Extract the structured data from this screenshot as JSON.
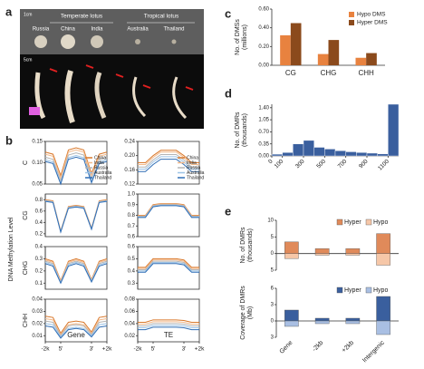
{
  "photo": {
    "label": "a",
    "groups": [
      "Temperate lotus",
      "Tropical lotus"
    ],
    "varieties": [
      "Russia",
      "China",
      "India",
      "Australia",
      "Thailand"
    ],
    "scales": [
      "1cm",
      "5cm"
    ]
  },
  "chart_data": [
    {
      "type": "line_grid",
      "label": "b",
      "ylabel": "DNA Methylation Level",
      "series": [
        {
          "name": "China",
          "color": "#d9782b"
        },
        {
          "name": "India",
          "color": "#f2b98a"
        },
        {
          "name": "Russia",
          "color": "#b4b4b4"
        },
        {
          "name": "Australia",
          "color": "#9cc3e6"
        },
        {
          "name": "Thailand",
          "color": "#2f6db5"
        }
      ],
      "columns": [
        "Gene",
        "TE"
      ],
      "x": [
        0,
        1,
        2,
        3,
        4,
        5,
        6,
        7,
        8
      ],
      "xlim": [
        0,
        8
      ],
      "xticks": [
        {
          "value": 0,
          "label": "-2k"
        },
        {
          "value": 2,
          "label": "5'"
        },
        {
          "value": 6,
          "label": "3'"
        },
        {
          "value": 8,
          "label": "+2k"
        }
      ],
      "rows": [
        {
          "name": "C",
          "panels": [
            {
              "ylim": [
                0.05,
                0.15
              ],
              "yticks": [
                0.05,
                {
                  "value": 0.1,
                  "label": "0.10"
                },
                0.15
              ],
              "values": [
                [
                  0.125,
                  0.12,
                  0.07,
                  0.13,
                  0.135,
                  0.13,
                  0.075,
                  0.12,
                  0.125
                ],
                [
                  0.12,
                  0.115,
                  0.065,
                  0.125,
                  0.13,
                  0.125,
                  0.07,
                  0.115,
                  0.12
                ],
                [
                  0.113,
                  0.108,
                  0.058,
                  0.118,
                  0.123,
                  0.118,
                  0.063,
                  0.108,
                  0.113
                ],
                [
                  0.107,
                  0.102,
                  0.052,
                  0.112,
                  0.117,
                  0.112,
                  0.057,
                  0.102,
                  0.107
                ],
                [
                  0.103,
                  0.098,
                  0.05,
                  0.108,
                  0.113,
                  0.108,
                  0.053,
                  0.098,
                  0.103
                ]
              ]
            },
            {
              "ylim": [
                0.12,
                0.24
              ],
              "yticks": [
                0.12,
                0.16,
                {
                  "value": 0.2,
                  "label": "0.20"
                },
                0.24
              ],
              "values": [
                [
                  0.18,
                  0.18,
                  0.2,
                  0.215,
                  0.215,
                  0.215,
                  0.2,
                  0.18,
                  0.18
                ],
                [
                  0.175,
                  0.175,
                  0.195,
                  0.21,
                  0.21,
                  0.21,
                  0.195,
                  0.175,
                  0.175
                ],
                [
                  0.168,
                  0.168,
                  0.188,
                  0.203,
                  0.203,
                  0.203,
                  0.188,
                  0.168,
                  0.168
                ],
                [
                  0.162,
                  0.162,
                  0.182,
                  0.197,
                  0.197,
                  0.197,
                  0.182,
                  0.162,
                  0.162
                ],
                [
                  0.155,
                  0.155,
                  0.175,
                  0.19,
                  0.19,
                  0.19,
                  0.175,
                  0.155,
                  0.155
                ]
              ]
            }
          ]
        },
        {
          "name": "CG",
          "panels": [
            {
              "ylim": [
                0.15,
                0.9
              ],
              "yticks": [
                0.2,
                0.4,
                0.6,
                0.8
              ],
              "values": [
                [
                  0.8,
                  0.78,
                  0.25,
                  0.68,
                  0.7,
                  0.68,
                  0.3,
                  0.78,
                  0.8
                ],
                [
                  0.79,
                  0.77,
                  0.24,
                  0.67,
                  0.69,
                  0.67,
                  0.29,
                  0.77,
                  0.79
                ],
                [
                  0.785,
                  0.765,
                  0.24,
                  0.665,
                  0.685,
                  0.665,
                  0.29,
                  0.765,
                  0.785
                ],
                [
                  0.78,
                  0.76,
                  0.235,
                  0.66,
                  0.68,
                  0.66,
                  0.285,
                  0.76,
                  0.78
                ],
                [
                  0.77,
                  0.75,
                  0.23,
                  0.65,
                  0.67,
                  0.65,
                  0.28,
                  0.75,
                  0.77
                ]
              ]
            },
            {
              "ylim": [
                0.6,
                1.0
              ],
              "yticks": [
                0.6,
                0.7,
                0.8,
                0.9,
                {
                  "value": 1,
                  "label": "1.0"
                }
              ],
              "values": [
                [
                  0.8,
                  0.8,
                  0.9,
                  0.91,
                  0.91,
                  0.91,
                  0.9,
                  0.8,
                  0.8
                ],
                [
                  0.795,
                  0.795,
                  0.895,
                  0.905,
                  0.905,
                  0.905,
                  0.895,
                  0.795,
                  0.795
                ],
                [
                  0.79,
                  0.79,
                  0.89,
                  0.9,
                  0.9,
                  0.9,
                  0.89,
                  0.79,
                  0.79
                ],
                [
                  0.785,
                  0.785,
                  0.885,
                  0.895,
                  0.895,
                  0.895,
                  0.885,
                  0.785,
                  0.785
                ],
                [
                  0.78,
                  0.78,
                  0.88,
                  0.89,
                  0.89,
                  0.89,
                  0.88,
                  0.78,
                  0.78
                ]
              ]
            }
          ]
        },
        {
          "name": "CHG",
          "panels": [
            {
              "ylim": [
                0.05,
                0.4
              ],
              "yticks": [
                0.1,
                0.2,
                0.3,
                0.4
              ],
              "values": [
                [
                  0.3,
                  0.28,
                  0.12,
                  0.28,
                  0.3,
                  0.28,
                  0.13,
                  0.28,
                  0.3
                ],
                [
                  0.29,
                  0.27,
                  0.115,
                  0.27,
                  0.29,
                  0.27,
                  0.125,
                  0.27,
                  0.29
                ],
                [
                  0.28,
                  0.26,
                  0.11,
                  0.26,
                  0.28,
                  0.26,
                  0.12,
                  0.26,
                  0.28
                ],
                [
                  0.27,
                  0.25,
                  0.105,
                  0.25,
                  0.27,
                  0.25,
                  0.115,
                  0.25,
                  0.27
                ],
                [
                  0.26,
                  0.24,
                  0.1,
                  0.24,
                  0.26,
                  0.24,
                  0.11,
                  0.24,
                  0.26
                ]
              ]
            },
            {
              "ylim": [
                0.25,
                0.6
              ],
              "yticks": [
                0.3,
                0.4,
                0.5,
                0.6
              ],
              "values": [
                [
                  0.43,
                  0.43,
                  0.5,
                  0.5,
                  0.5,
                  0.5,
                  0.49,
                  0.43,
                  0.43
                ],
                [
                  0.42,
                  0.42,
                  0.49,
                  0.49,
                  0.49,
                  0.49,
                  0.48,
                  0.42,
                  0.42
                ],
                [
                  0.41,
                  0.41,
                  0.48,
                  0.48,
                  0.48,
                  0.48,
                  0.47,
                  0.41,
                  0.41
                ],
                [
                  0.4,
                  0.4,
                  0.47,
                  0.47,
                  0.47,
                  0.47,
                  0.46,
                  0.4,
                  0.4
                ],
                [
                  0.39,
                  0.39,
                  0.46,
                  0.46,
                  0.46,
                  0.46,
                  0.45,
                  0.39,
                  0.39
                ]
              ]
            }
          ]
        },
        {
          "name": "CHH",
          "panels": [
            {
              "ylim": [
                0.005,
                0.04
              ],
              "yticks": [
                0.01,
                0.02,
                0.03,
                0.04
              ],
              "values": [
                [
                  0.026,
                  0.025,
                  0.012,
                  0.021,
                  0.022,
                  0.021,
                  0.013,
                  0.025,
                  0.026
                ],
                [
                  0.024,
                  0.023,
                  0.011,
                  0.019,
                  0.02,
                  0.019,
                  0.012,
                  0.023,
                  0.024
                ],
                [
                  0.022,
                  0.021,
                  0.01,
                  0.018,
                  0.019,
                  0.018,
                  0.011,
                  0.021,
                  0.022
                ],
                [
                  0.02,
                  0.019,
                  0.009,
                  0.016,
                  0.017,
                  0.016,
                  0.01,
                  0.019,
                  0.02
                ],
                [
                  0.018,
                  0.017,
                  0.008,
                  0.015,
                  0.016,
                  0.015,
                  0.009,
                  0.017,
                  0.018
                ]
              ]
            },
            {
              "ylim": [
                0.01,
                0.08
              ],
              "yticks": [
                0.02,
                0.04,
                0.06,
                0.08
              ],
              "values": [
                [
                  0.042,
                  0.042,
                  0.046,
                  0.046,
                  0.046,
                  0.046,
                  0.045,
                  0.042,
                  0.042
                ],
                [
                  0.039,
                  0.039,
                  0.043,
                  0.043,
                  0.043,
                  0.043,
                  0.042,
                  0.039,
                  0.039
                ],
                [
                  0.036,
                  0.036,
                  0.04,
                  0.04,
                  0.04,
                  0.04,
                  0.039,
                  0.036,
                  0.036
                ],
                [
                  0.033,
                  0.033,
                  0.037,
                  0.037,
                  0.037,
                  0.037,
                  0.036,
                  0.033,
                  0.033
                ],
                [
                  0.03,
                  0.03,
                  0.034,
                  0.034,
                  0.034,
                  0.034,
                  0.033,
                  0.03,
                  0.03
                ]
              ]
            }
          ]
        }
      ]
    },
    {
      "type": "bar",
      "label": "c",
      "ylabel": [
        "No. of DMSs",
        "(millions)"
      ],
      "categories": [
        "CG",
        "CHG",
        "CHH"
      ],
      "series": [
        {
          "name": "Hypo DMS",
          "color": "#e8823f",
          "values": [
            0.32,
            0.12,
            0.08
          ]
        },
        {
          "name": "Hyper DMS",
          "color": "#8b4a1c",
          "values": [
            0.45,
            0.27,
            0.13
          ]
        }
      ],
      "ylim": [
        0,
        0.6
      ],
      "yticks": [
        {
          "value": 0,
          "label": "0.00"
        },
        {
          "value": 0.2,
          "label": "0.20"
        },
        {
          "value": 0.4,
          "label": "0.40"
        },
        {
          "value": 0.6,
          "label": "0.60"
        }
      ]
    },
    {
      "type": "histogram",
      "label": "d",
      "ylabel": [
        "No. of DMRs",
        "(thousands)"
      ],
      "color": "#3a5f9e",
      "bins": [
        0,
        100,
        200,
        300,
        400,
        500,
        600,
        700,
        800,
        900,
        1000,
        1100,
        1200
      ],
      "counts": [
        0.05,
        0.1,
        0.35,
        0.45,
        0.25,
        0.2,
        0.15,
        0.12,
        0.1,
        0.08,
        0.06,
        1.5
      ],
      "xlim": [
        0,
        1200
      ],
      "xticks": [
        0,
        100,
        300,
        500,
        700,
        900,
        1100
      ],
      "ylim": [
        0,
        1.5
      ],
      "yticks": [
        {
          "value": 0,
          "label": "0.00"
        },
        0.35,
        {
          "value": 0.7,
          "label": "0.70"
        },
        1.05,
        {
          "value": 1.4,
          "label": "1.40"
        }
      ]
    },
    {
      "type": "diverging_bar",
      "label": "e",
      "categories": [
        "Gene",
        "-2kb",
        "+2kb",
        "Intergenic"
      ],
      "panels": [
        {
          "ylabel": [
            "No. of DMRs",
            "(thousands)"
          ],
          "ylim": [
            -5,
            10
          ],
          "yticks": [
            {
              "value": -5,
              "label": "5"
            },
            0,
            5,
            10
          ],
          "series": [
            {
              "name": "Hyper",
              "color": "#e08a5a",
              "values": [
                3.5,
                1.5,
                1.5,
                6
              ]
            },
            {
              "name": "Hypo",
              "color": "#f6c7a8",
              "values": [
                -1.5,
                -0.5,
                -0.5,
                -3.5
              ]
            }
          ]
        },
        {
          "ylabel": [
            "Coverage of DMRs",
            "(Mb)"
          ],
          "ylim": [
            -3,
            6
          ],
          "yticks": [
            {
              "value": -3,
              "label": "3"
            },
            0,
            3,
            6
          ],
          "series": [
            {
              "name": "Hyper",
              "color": "#3a5f9e",
              "values": [
                2,
                0.5,
                0.5,
                4.5
              ]
            },
            {
              "name": "Hypo",
              "color": "#a9bfe3",
              "values": [
                -1,
                -0.5,
                -0.5,
                -2.5
              ]
            }
          ]
        }
      ]
    }
  ]
}
